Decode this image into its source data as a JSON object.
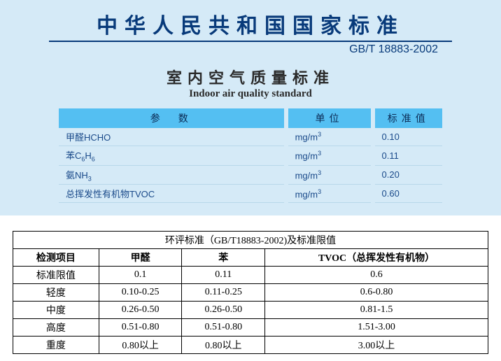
{
  "header": {
    "main_title": "中华人民共和国国家标准",
    "standard_code": "GB/T 18883-2002",
    "subtitle_cn": "室内空气质量标准",
    "subtitle_en": "Indoor air quality standard"
  },
  "param_table": {
    "headers": {
      "param": "参　数",
      "unit": "单位",
      "std": "标准值"
    },
    "rows": [
      {
        "name_html": "甲醛HCHO",
        "unit_html": "mg/m<sup>3</sup>",
        "value": "0.10"
      },
      {
        "name_html": "苯C<sub>6</sub>H<sub>6</sub>",
        "unit_html": "mg/m<sup>3</sup>",
        "value": "0.11"
      },
      {
        "name_html": "氨NH<sub>3</sub>",
        "unit_html": "mg/m<sup>3</sup>",
        "value": "0.20"
      },
      {
        "name_html": "总挥发性有机物TVOC",
        "unit_html": "mg/m<sup>3</sup>",
        "value": "0.60"
      }
    ]
  },
  "limit_table": {
    "title": "环评标准（GB/T18883-2002)及标准限值",
    "columns": [
      "检测项目",
      "甲醛",
      "苯",
      "TVOC（总挥发性有机物）"
    ],
    "rows": [
      [
        "标准限值",
        "0.1",
        "0.11",
        "0.6"
      ],
      [
        "轻度",
        "0.10-0.25",
        "0.11-0.25",
        "0.6-0.80"
      ],
      [
        "中度",
        "0.26-0.50",
        "0.26-0.50",
        "0.81-1.5"
      ],
      [
        "高度",
        "0.51-0.80",
        "0.51-0.80",
        "1.51-3.00"
      ],
      [
        "重度",
        "0.80以上",
        "0.80以上",
        "3.00以上"
      ]
    ]
  },
  "styling": {
    "top_panel_bg": "#d5eaf7",
    "heading_color": "#083a7a",
    "th_bg": "#54bff2",
    "row_border": "#b8d8ea",
    "limit_border": "#000000"
  }
}
